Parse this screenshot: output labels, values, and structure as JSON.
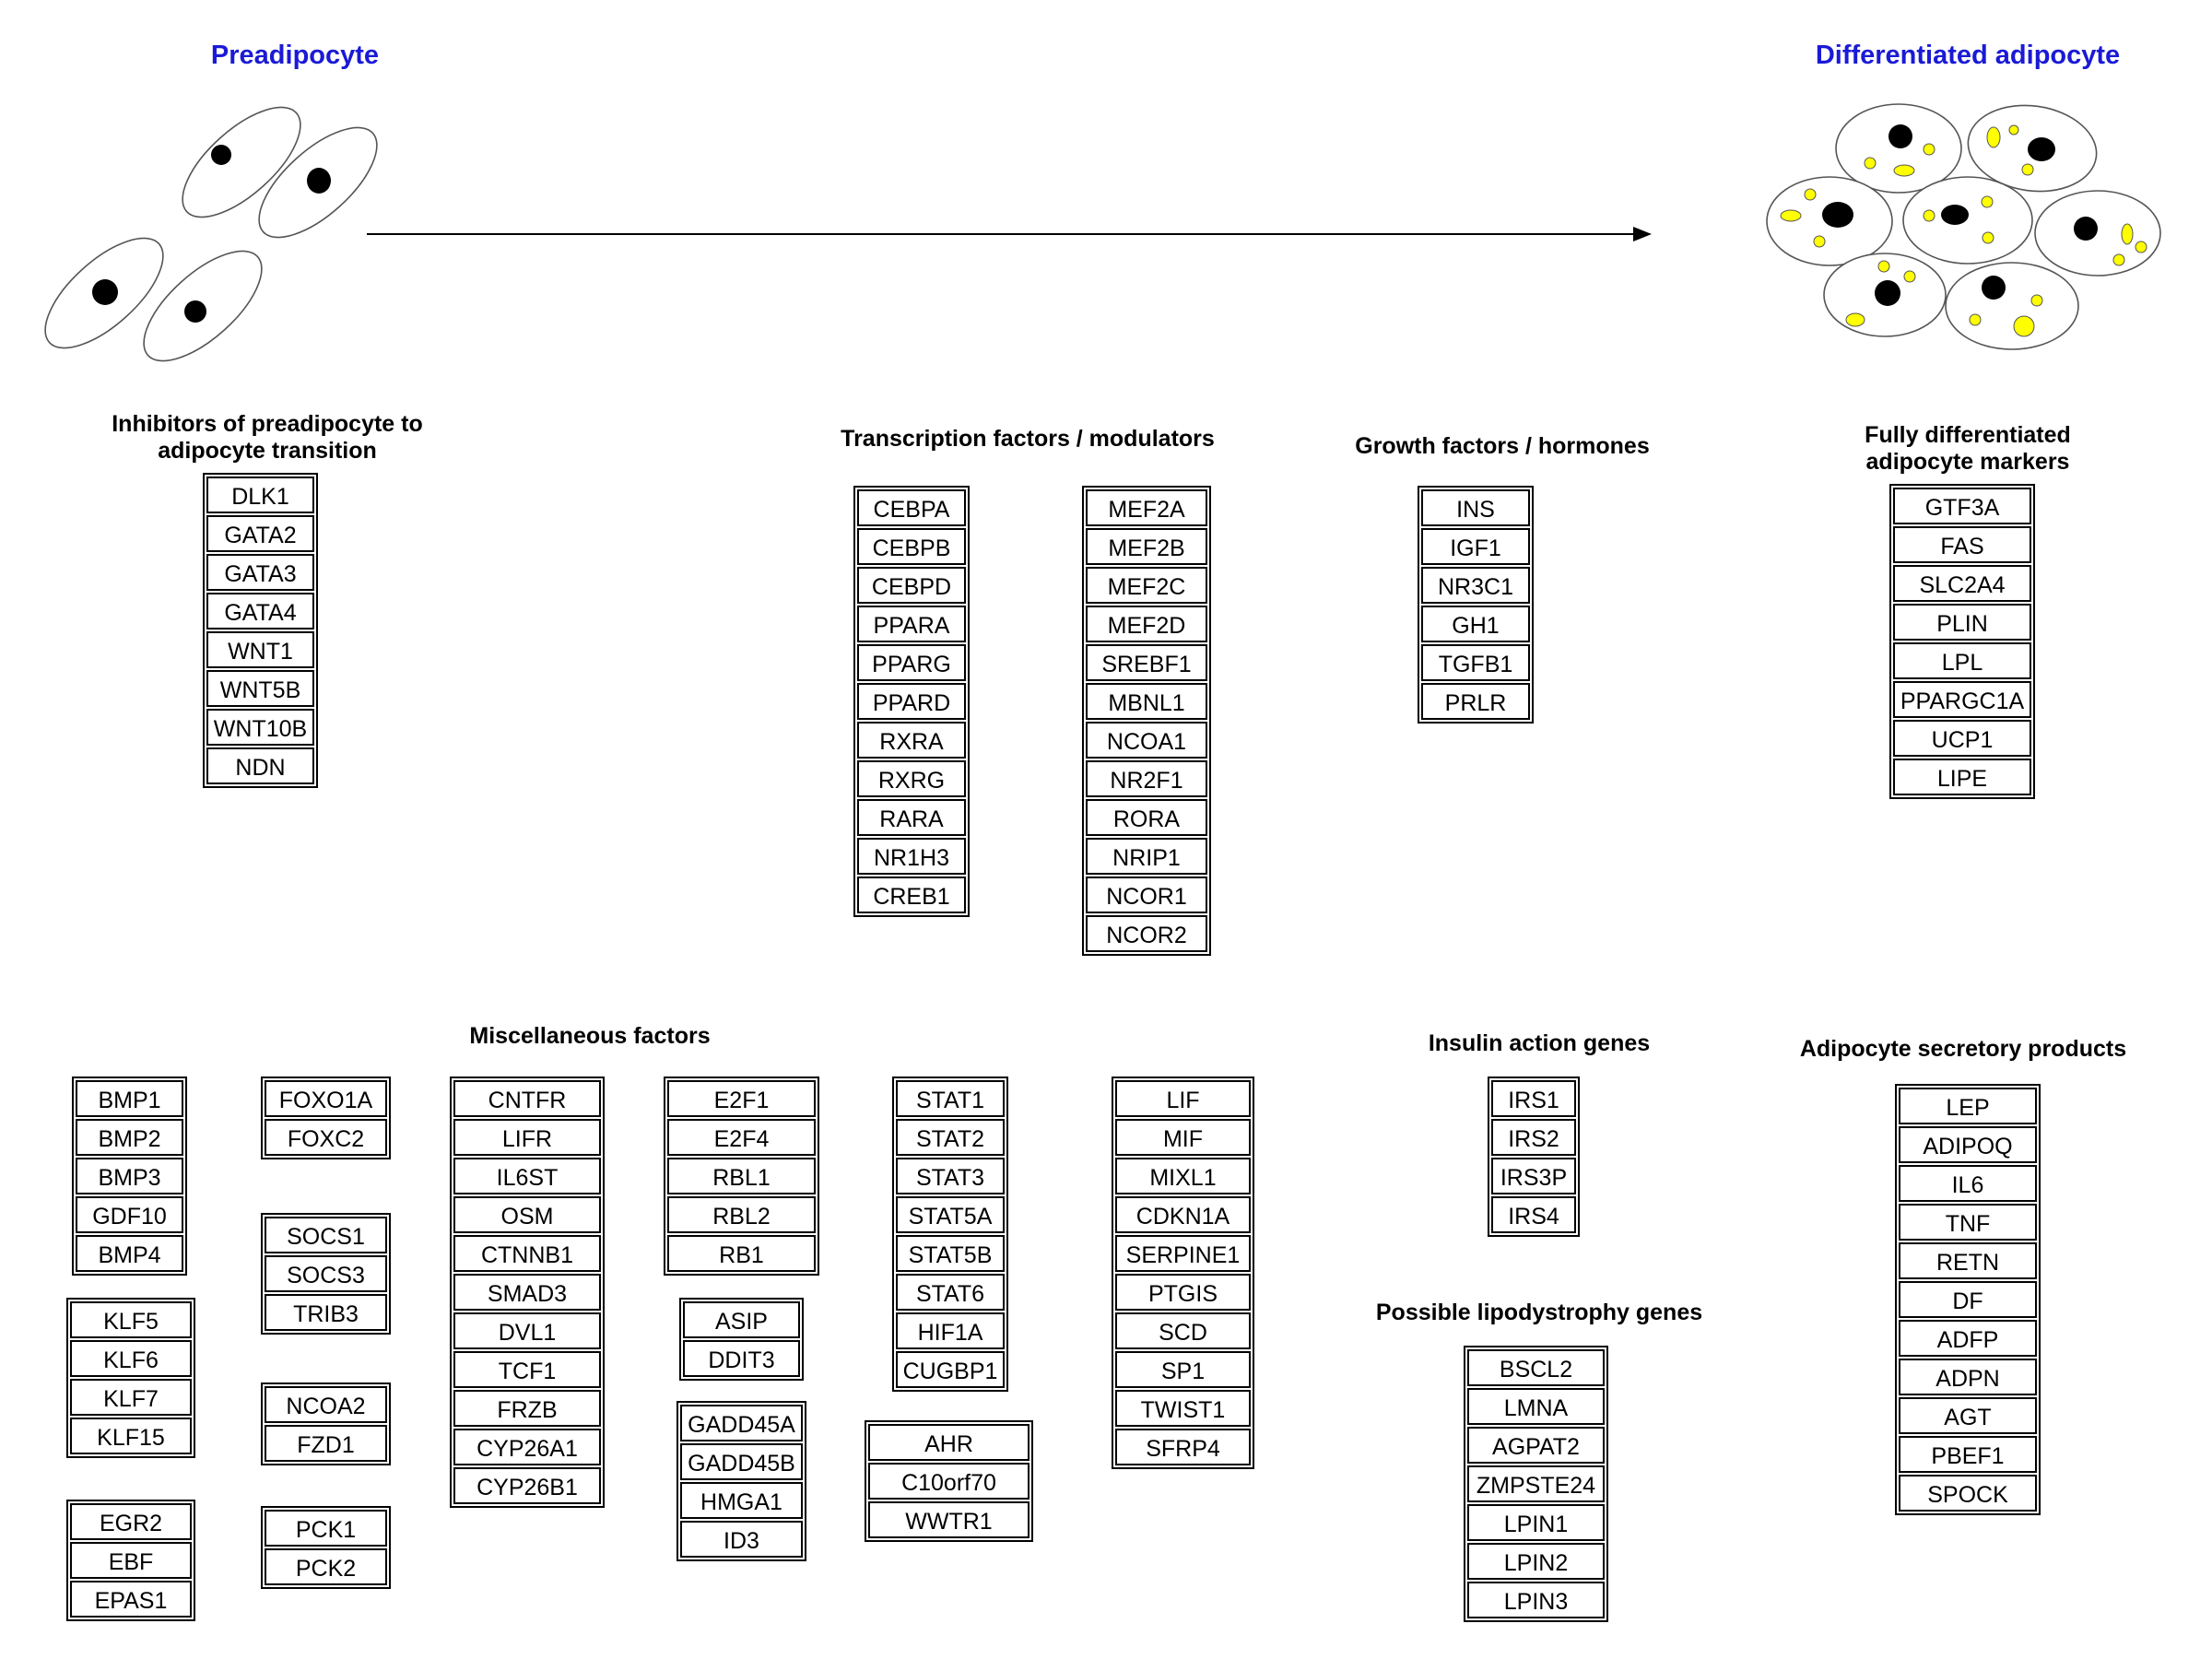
{
  "stages": {
    "left": "Preadipocyte",
    "right": "Differentiated adipocyte"
  },
  "sections": {
    "inhibitors": "Inhibitors of preadipocyte to\nadipocyte transition",
    "transcription": "Transcription factors / modulators",
    "growth": "Growth factors / hormones",
    "markers": "Fully differentiated\nadipocyte markers",
    "misc": "Miscellaneous factors",
    "insulin": "Insulin action genes",
    "lipodystrophy": "Possible lipodystrophy genes",
    "secretory": "Adipocyte secretory products"
  },
  "groups": {
    "inhibitors": [
      "DLK1",
      "GATA2",
      "GATA3",
      "GATA4",
      "WNT1",
      "WNT5B",
      "WNT10B",
      "NDN"
    ],
    "transcription_a": [
      "CEBPA",
      "CEBPB",
      "CEBPD",
      "PPARA",
      "PPARG",
      "PPARD",
      "RXRA",
      "RXRG",
      "RARA",
      "NR1H3",
      "CREB1"
    ],
    "transcription_b": [
      "MEF2A",
      "MEF2B",
      "MEF2C",
      "MEF2D",
      "SREBF1",
      "MBNL1",
      "NCOA1",
      "NR2F1",
      "RORA",
      "NRIP1",
      "NCOR1",
      "NCOR2"
    ],
    "growth": [
      "INS",
      "IGF1",
      "NR3C1",
      "GH1",
      "TGFB1",
      "PRLR"
    ],
    "markers": [
      "GTF3A",
      "FAS",
      "SLC2A4",
      "PLIN",
      "LPL",
      "PPARGC1A",
      "UCP1",
      "LIPE"
    ],
    "misc_bmp": [
      "BMP1",
      "BMP2",
      "BMP3",
      "GDF10",
      "BMP4"
    ],
    "misc_klf": [
      "KLF5",
      "KLF6",
      "KLF7",
      "KLF15"
    ],
    "misc_egr": [
      "EGR2",
      "EBF",
      "EPAS1"
    ],
    "misc_foxo": [
      "FOXO1A",
      "FOXC2"
    ],
    "misc_socs": [
      "SOCS1",
      "SOCS3",
      "TRIB3"
    ],
    "misc_ncoa": [
      "NCOA2",
      "FZD1"
    ],
    "misc_pck": [
      "PCK1",
      "PCK2"
    ],
    "misc_cntf": [
      "CNTFR",
      "LIFR",
      "IL6ST",
      "OSM",
      "CTNNB1",
      "SMAD3",
      "DVL1",
      "TCF1",
      "FRZB",
      "CYP26A1",
      "CYP26B1"
    ],
    "misc_e2f": [
      "E2F1",
      "E2F4",
      "RBL1",
      "RBL2",
      "RB1"
    ],
    "misc_asip": [
      "ASIP",
      "DDIT3"
    ],
    "misc_gadd": [
      "GADD45A",
      "GADD45B",
      "HMGA1",
      "ID3"
    ],
    "misc_stat": [
      "STAT1",
      "STAT2",
      "STAT3",
      "STAT5A",
      "STAT5B",
      "STAT6",
      "HIF1A",
      "CUGBP1"
    ],
    "misc_ahr": [
      "AHR",
      "C10orf70",
      "WWTR1"
    ],
    "misc_lif": [
      "LIF",
      "MIF",
      "MIXL1",
      "CDKN1A",
      "SERPINE1",
      "PTGIS",
      "SCD",
      "SP1",
      "TWIST1",
      "SFRP4"
    ],
    "insulin": [
      "IRS1",
      "IRS2",
      "IRS3P",
      "IRS4"
    ],
    "lipodystrophy": [
      "BSCL2",
      "LMNA",
      "AGPAT2",
      "ZMPSTE24",
      "LPIN1",
      "LPIN2",
      "LPIN3"
    ],
    "secretory": [
      "LEP",
      "ADIPOQ",
      "IL6",
      "TNF",
      "RETN",
      "DF",
      "ADFP",
      "ADPN",
      "AGT",
      "PBEF1",
      "SPOCK"
    ]
  },
  "colors": {
    "stage_label": "#1a1ad6",
    "lipid_droplet": "#ffff00",
    "nucleus": "#000000",
    "box_border": "#000000"
  }
}
